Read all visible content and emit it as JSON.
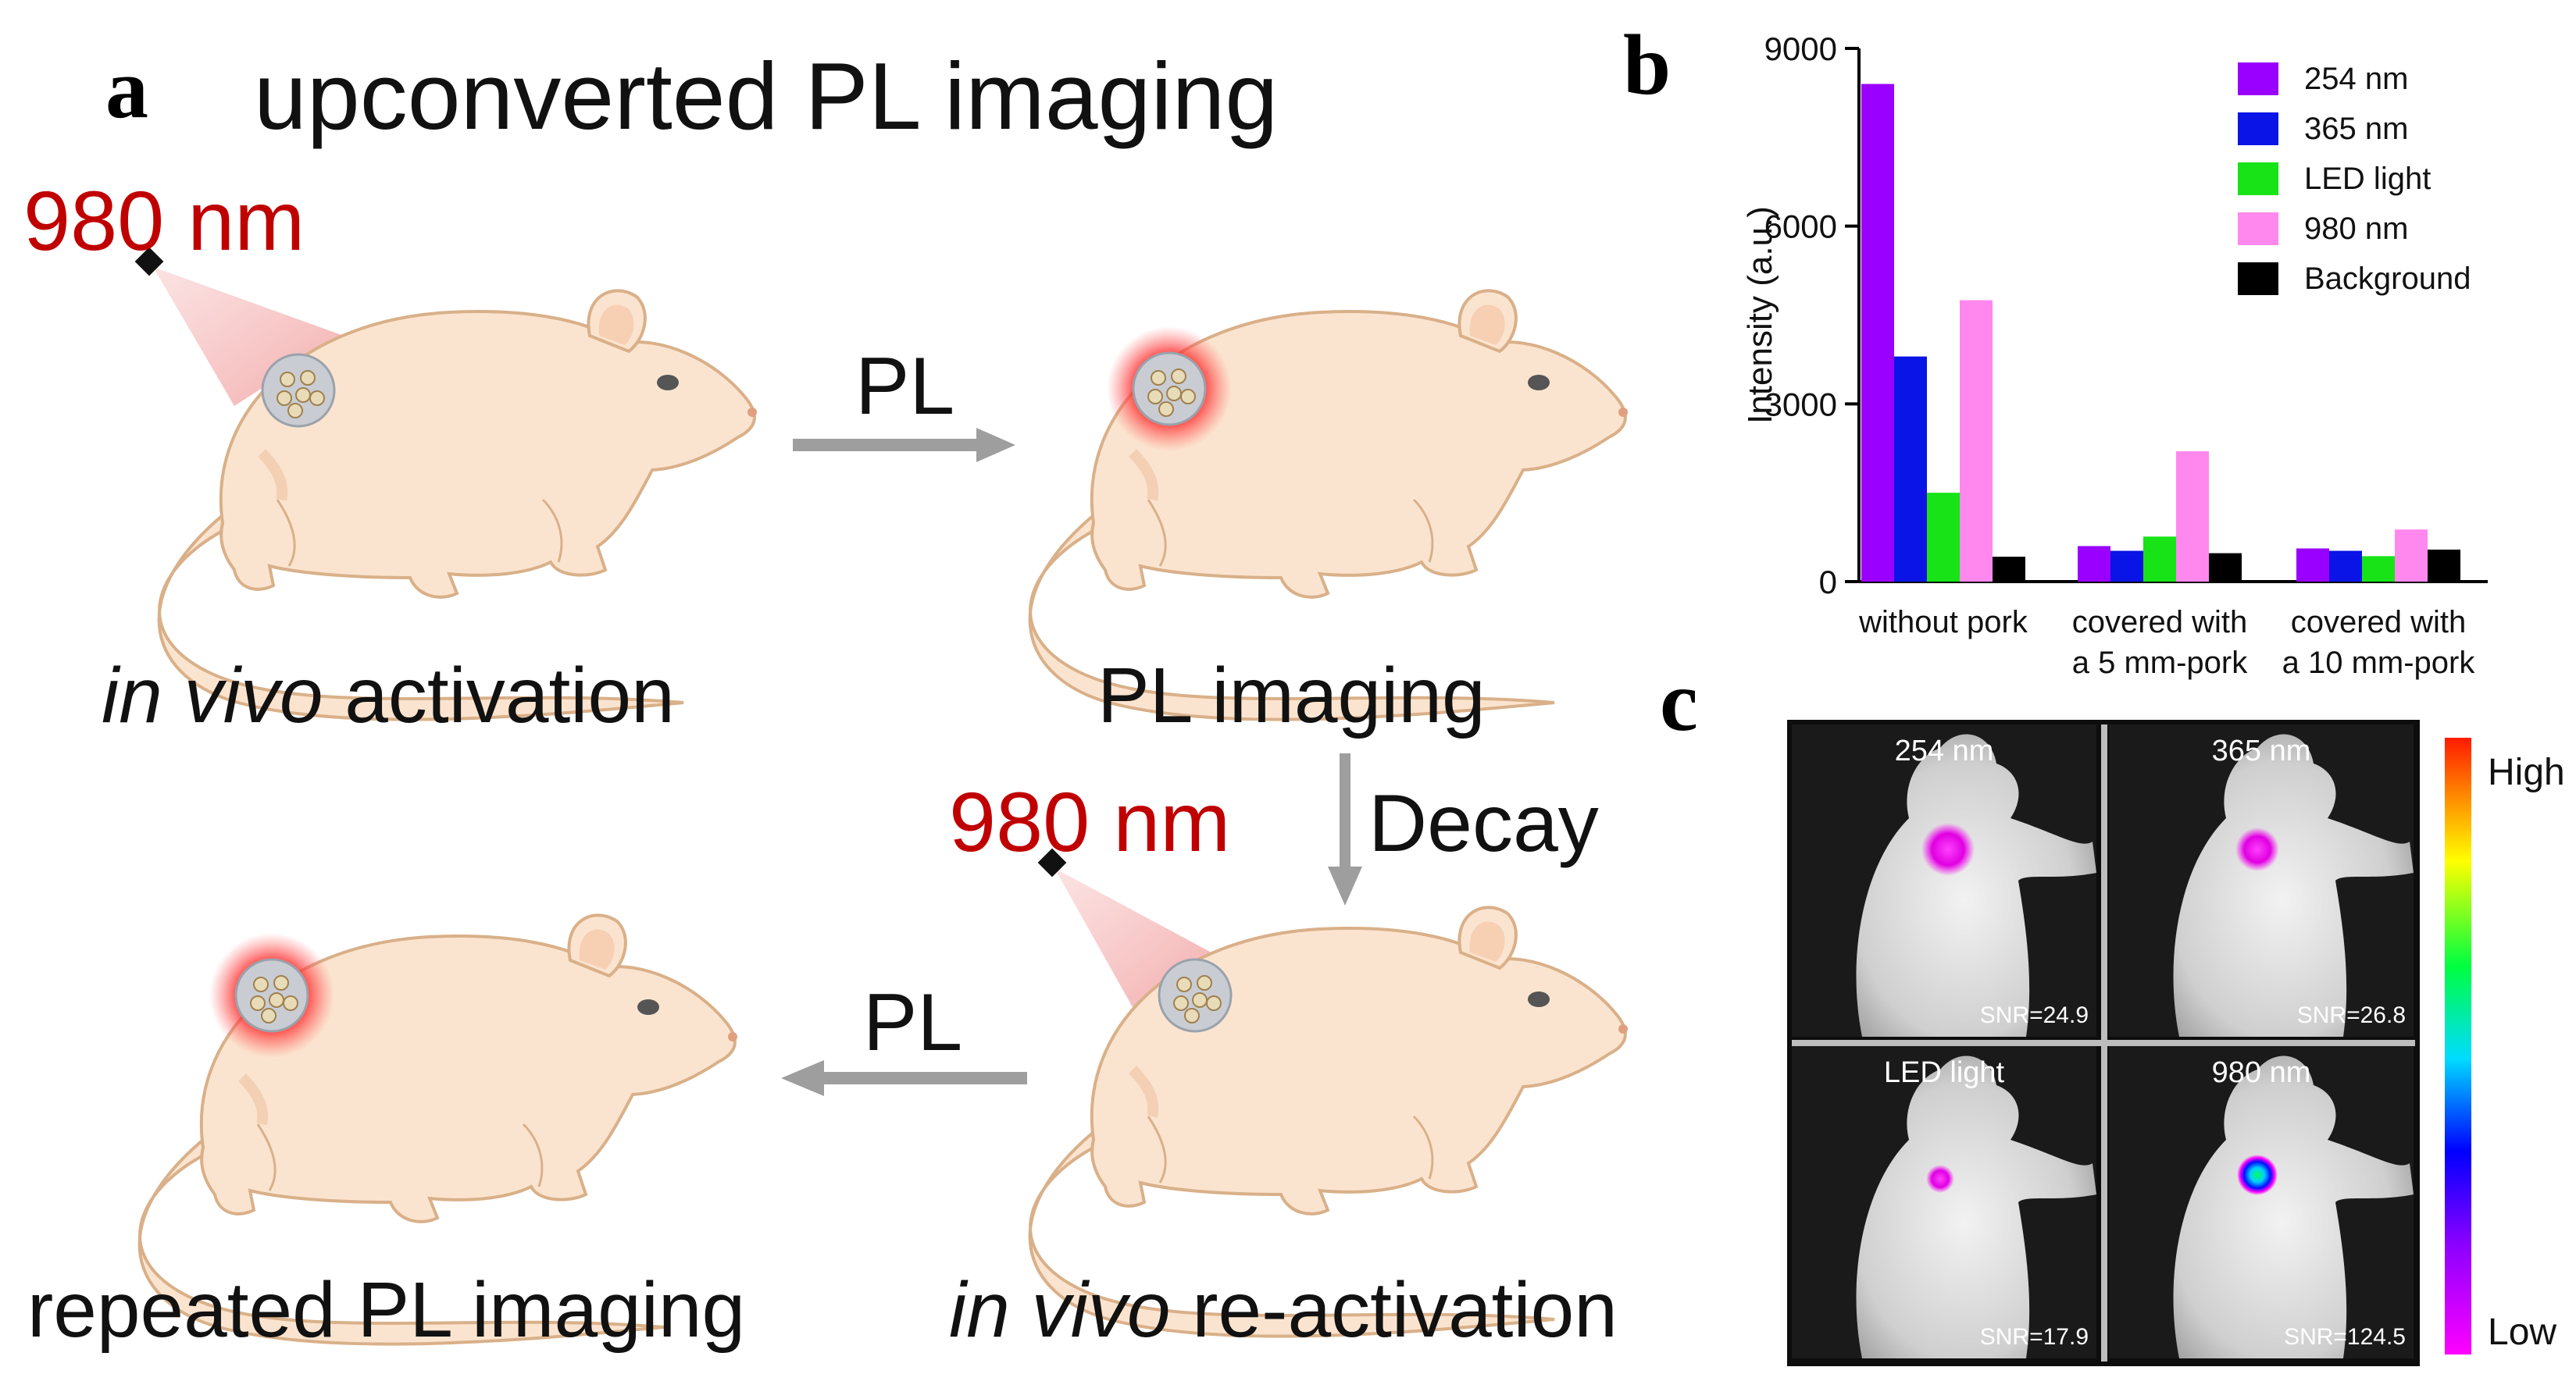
{
  "panel_a": {
    "letter": "a",
    "title": "upconverted PL imaging",
    "laser_top": "980 nm",
    "arrow_pl_top": "PL",
    "arrow_decay": "Decay",
    "laser_mid": "980 nm",
    "arrow_pl_bottom": "PL",
    "caption_tl_italic": "in vivo",
    "caption_tl_rest": " activation",
    "caption_tr": "PL imaging",
    "caption_bl": "repeated PL imaging",
    "caption_br_italic": "in vivo",
    "caption_br_rest": " re-activation"
  },
  "panel_b": {
    "letter": "b"
  },
  "panel_c": {
    "letter": "c",
    "cells": [
      {
        "label": "254 nm",
        "snr": "SNR=24.9"
      },
      {
        "label": "365 nm",
        "snr": "SNR=26.8"
      },
      {
        "label": "LED light",
        "snr": "SNR=17.9"
      },
      {
        "label": "980 nm",
        "snr": "SNR=124.5"
      }
    ],
    "scale_high": "High",
    "scale_low": "Low"
  },
  "colors": {
    "mouse_fill": "#fbe4cf",
    "mouse_stroke": "#d9b089",
    "laser_red": "#c00000",
    "arrow_gray": "#9e9e9e"
  },
  "chart_data": {
    "type": "bar",
    "categories": [
      "without pork",
      "covered with\na 5 mm-pork",
      "covered with\na 10 mm-pork"
    ],
    "series": [
      {
        "name": "254 nm",
        "color": "#9a00ff",
        "values": [
          8400,
          600,
          560
        ]
      },
      {
        "name": "365 nm",
        "color": "#0a14e6",
        "values": [
          3800,
          520,
          520
        ]
      },
      {
        "name": "LED light",
        "color": "#17e317",
        "values": [
          1500,
          760,
          430
        ]
      },
      {
        "name": "980 nm",
        "color": "#ff88ee",
        "values": [
          4750,
          2200,
          880
        ]
      },
      {
        "name": "Background",
        "color": "#000000",
        "values": [
          420,
          480,
          540
        ]
      }
    ],
    "ylabel": "Intensity (a.u.)",
    "ylim": [
      0,
      9000
    ],
    "yticks": [
      0,
      3000,
      6000,
      9000
    ],
    "legend": "top-right",
    "grid": false
  }
}
